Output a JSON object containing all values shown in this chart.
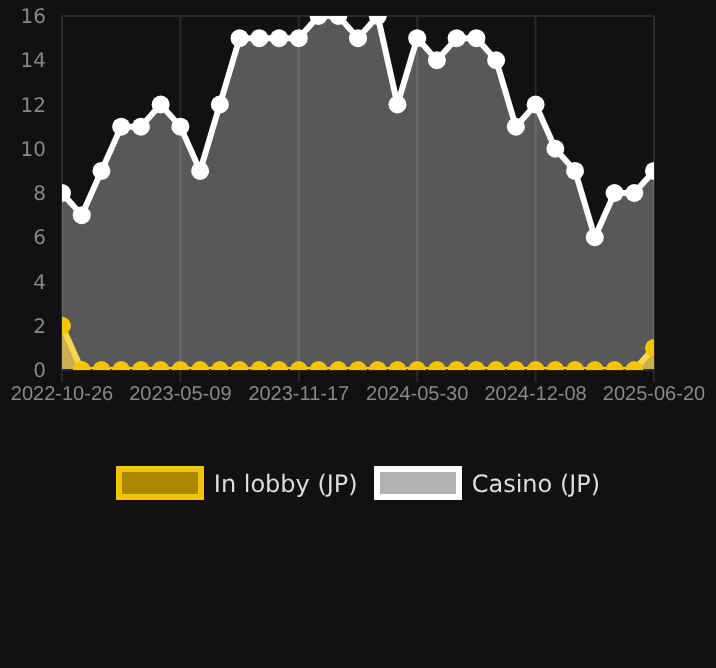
{
  "chart_data": {
    "type": "area",
    "categories": [
      "2022-10-26",
      null,
      null,
      null,
      null,
      null,
      "2023-05-09",
      null,
      null,
      null,
      null,
      null,
      "2023-11-17",
      null,
      null,
      null,
      null,
      null,
      "2024-05-30",
      null,
      null,
      null,
      null,
      null,
      "2024-12-08",
      null,
      null,
      null,
      null,
      null,
      "2025-06-20"
    ],
    "series": [
      {
        "name": "In lobby (JP)",
        "color": "#f5c400",
        "values": [
          2,
          0,
          0,
          0,
          0,
          0,
          0,
          0,
          0,
          0,
          0,
          0,
          0,
          0,
          0,
          0,
          0,
          0,
          0,
          0,
          0,
          0,
          0,
          0,
          0,
          0,
          0,
          0,
          0,
          0,
          1
        ]
      },
      {
        "name": "Casino (JP)",
        "color": "#ffffff",
        "values": [
          8,
          7,
          9,
          11,
          11,
          12,
          11,
          9,
          12,
          15,
          15,
          15,
          15,
          16,
          16,
          15,
          16,
          12,
          15,
          14,
          15,
          15,
          14,
          11,
          12,
          10,
          9,
          6,
          8,
          8,
          9
        ]
      }
    ],
    "ylim": [
      0,
      16
    ],
    "yticks": [
      0,
      2,
      4,
      6,
      8,
      10,
      12,
      14,
      16
    ],
    "grid": true,
    "legend": "bottom",
    "marker": "circle"
  }
}
